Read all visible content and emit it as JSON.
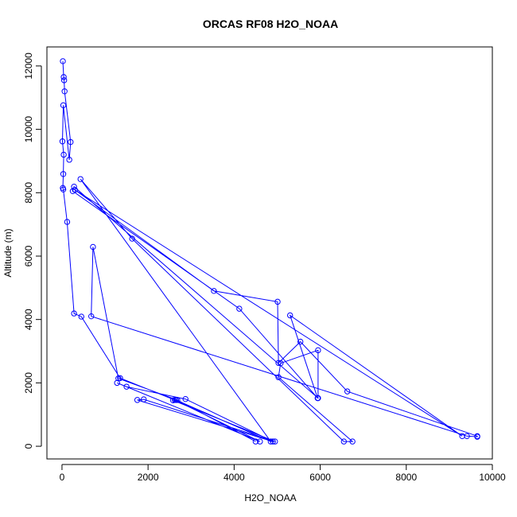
{
  "chart_data": {
    "type": "line",
    "title": "ORCAS RF08 H2O_NOAA",
    "xlabel": "H2O_NOAA",
    "ylabel": "Altitude (m)",
    "xlim": [
      -350,
      10000
    ],
    "ylim": [
      -400,
      12600
    ],
    "xticks": [
      0,
      2000,
      4000,
      6000,
      8000,
      10000
    ],
    "yticks": [
      0,
      2000,
      4000,
      6000,
      8000,
      10000,
      12000
    ],
    "grid": false,
    "legend": "none",
    "color": "#0000ff",
    "markers": "open-circle",
    "series": [
      {
        "name": "",
        "x": [
          20,
          40,
          50,
          60,
          200,
          170,
          30,
          10,
          40,
          30,
          20,
          30,
          120,
          280,
          450,
          1350,
          2620,
          4600,
          1280,
          1500,
          2870,
          4900,
          1750,
          1900,
          4950,
          2580,
          2650,
          4850,
          430,
          1630,
          6550,
          6750,
          5030,
          5080,
          5950,
          5950,
          280,
          250,
          4120,
          5940,
          5300,
          9300,
          300,
          3530,
          5010,
          5030,
          5540,
          6630,
          9650,
          9650,
          9410,
          680,
          720,
          1310,
          2680,
          4500
        ],
        "y": [
          12150,
          11650,
          11550,
          11200,
          9600,
          9040,
          10760,
          9620,
          9200,
          8590,
          8150,
          8100,
          7080,
          4190,
          4090,
          2150,
          1460,
          150,
          2000,
          1880,
          1490,
          150,
          1460,
          1480,
          150,
          1450,
          1460,
          150,
          8430,
          6550,
          150,
          150,
          2180,
          2620,
          3030,
          1520,
          8190,
          8050,
          4340,
          1520,
          4130,
          320,
          8090,
          4900,
          4560,
          2630,
          3300,
          1730,
          320,
          300,
          320,
          4100,
          6290,
          2140,
          1460,
          150
        ]
      }
    ]
  }
}
